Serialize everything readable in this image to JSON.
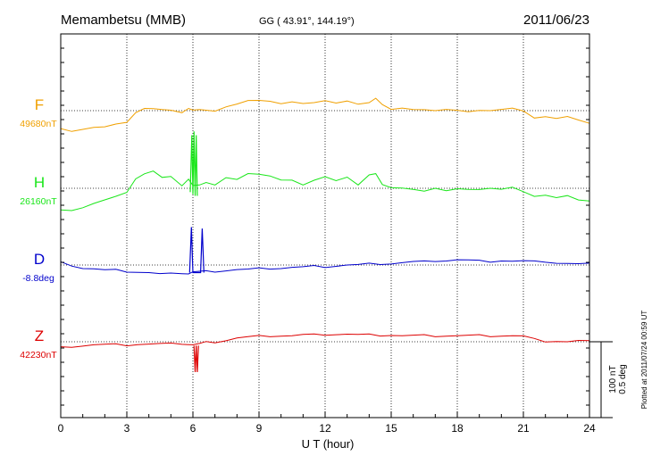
{
  "header": {
    "station": "Memambetsu (MMB)",
    "coords": "GG ( 43.91°, 144.19°)",
    "date": "2011/06/23"
  },
  "plotted_note": "Plotted at 2011/07/24 00:59 UT",
  "scale_bar": {
    "line1": "100 nT",
    "line2": "0.5 deg"
  },
  "colors": {
    "F": "#f0a000",
    "H": "#19e619",
    "D": "#0000cc",
    "Z": "#dd0000",
    "axis": "#000000"
  },
  "chart_data": {
    "type": "line",
    "title": "Memambetsu (MMB)",
    "xlabel": "U T (hour)",
    "ylabel": "",
    "xlim": [
      0,
      24
    ],
    "x_ticks": [
      0,
      3,
      6,
      9,
      12,
      15,
      18,
      21,
      24
    ],
    "grid": true,
    "scale": {
      "nT_per_bar": 100,
      "deg_per_bar": 0.5
    },
    "series": [
      {
        "name": "F",
        "baseline_label": "49680nT",
        "color_key": "F",
        "x": [
          0,
          0.5,
          1,
          1.5,
          2,
          2.5,
          3,
          3.4,
          3.8,
          4.2,
          4.6,
          5,
          5.5,
          5.8,
          6.0,
          6.3,
          6.6,
          7,
          7.5,
          8,
          8.5,
          9,
          9.5,
          10,
          10.5,
          11,
          11.5,
          12,
          12.5,
          13,
          13.5,
          14,
          14.3,
          14.6,
          15,
          15.5,
          16,
          16.5,
          17,
          17.5,
          18,
          18.5,
          19,
          19.5,
          20,
          20.5,
          21,
          21.5,
          22,
          22.5,
          23,
          23.5,
          24
        ],
        "y": [
          -25,
          -26,
          -24,
          -22,
          -22,
          -19,
          -14,
          -2,
          3,
          2,
          0,
          2,
          -2,
          3,
          0,
          0,
          2,
          0,
          5,
          8,
          12,
          15,
          13,
          9,
          11,
          8,
          12,
          14,
          10,
          12,
          7,
          12,
          17,
          8,
          1,
          2,
          3,
          2,
          0,
          1,
          -1,
          0,
          1,
          0,
          1,
          2,
          1,
          -9,
          -8,
          -11,
          -9,
          -11,
          -16
        ]
      },
      {
        "name": "H",
        "baseline_label": "26160nT",
        "color_key": "H",
        "x": [
          0,
          0.5,
          1,
          1.5,
          2,
          2.5,
          3,
          3.4,
          3.8,
          4.2,
          4.6,
          5,
          5.5,
          5.8,
          6.0,
          6.3,
          6.6,
          7,
          7.5,
          8,
          8.5,
          9,
          9.5,
          10,
          10.5,
          11,
          11.5,
          12,
          12.5,
          13,
          13.5,
          14,
          14.3,
          14.6,
          15,
          15.5,
          16,
          16.5,
          17,
          17.5,
          18,
          18.5,
          19,
          19.5,
          20,
          20.5,
          21,
          21.5,
          22,
          22.5,
          23,
          23.5,
          24
        ],
        "y": [
          -30,
          -28,
          -25,
          -20,
          -16,
          -12,
          -4,
          13,
          19,
          22,
          13,
          17,
          4,
          12,
          3,
          3,
          9,
          5,
          14,
          11,
          18,
          20,
          17,
          11,
          10,
          3,
          12,
          16,
          10,
          14,
          3,
          19,
          20,
          5,
          0,
          -1,
          0,
          -3,
          0,
          -4,
          -2,
          0,
          -1,
          0,
          -2,
          0,
          -3,
          -10,
          -9,
          -13,
          -11,
          -14,
          -16
        ]
      },
      {
        "name": "D",
        "baseline_label": "-8.8deg",
        "color_key": "D",
        "x": [
          0,
          0.5,
          1,
          1.5,
          2,
          2.5,
          3,
          3.5,
          4,
          4.5,
          5,
          5.5,
          5.8,
          6.0,
          6.3,
          6.6,
          7,
          7.5,
          8,
          8.5,
          9,
          9.5,
          10,
          10.5,
          11,
          11.5,
          12,
          12.5,
          13,
          13.5,
          14,
          14.5,
          15,
          15.5,
          16,
          16.5,
          17,
          17.5,
          18,
          18.5,
          19,
          19.5,
          20,
          20.5,
          21,
          21.5,
          22,
          22.5,
          23,
          23.5,
          24
        ],
        "y": [
          3,
          0,
          -4,
          -5,
          -7,
          -7,
          -8,
          -9,
          -10,
          -12,
          -12,
          -10,
          -11,
          -9,
          -9,
          -9,
          -8,
          -7,
          -6,
          -6,
          -5,
          -4,
          -4,
          -3,
          -3,
          -2,
          -2,
          -1,
          0,
          0,
          1,
          2,
          2,
          3,
          4,
          4,
          6,
          6,
          7,
          6,
          5,
          5,
          6,
          5,
          5,
          4,
          5,
          3,
          2,
          1,
          1
        ]
      },
      {
        "name": "Z",
        "baseline_label": "42230nT",
        "color_key": "Z",
        "x": [
          0,
          0.5,
          1,
          1.5,
          2,
          2.5,
          3,
          3.5,
          4,
          4.5,
          5,
          5.5,
          5.8,
          6.0,
          6.3,
          6.6,
          7,
          7.5,
          8,
          8.5,
          9,
          9.5,
          10,
          10.5,
          11,
          11.5,
          12,
          12.5,
          13,
          13.5,
          14,
          14.5,
          15,
          15.5,
          16,
          16.5,
          17,
          17.5,
          18,
          18.5,
          19,
          19.5,
          20,
          20.5,
          21,
          21.5,
          22,
          22.5,
          23,
          23.5,
          24
        ],
        "y": [
          -8,
          -6,
          -5,
          -4,
          -4,
          -4,
          -4,
          -3,
          -3,
          -3,
          -3,
          -2,
          -3,
          -4,
          -3,
          -1,
          0,
          2,
          5,
          6,
          7,
          8,
          8,
          8,
          9,
          9,
          10,
          10,
          10,
          9,
          9,
          9,
          9,
          8,
          8,
          8,
          8,
          8,
          8,
          8,
          8,
          8,
          8,
          8,
          7,
          3,
          1,
          1,
          0,
          1,
          0
        ]
      }
    ],
    "spikes": [
      {
        "series": "H",
        "x": [
          5.88,
          5.95,
          6.0,
          6.05,
          6.1,
          6.15,
          6.2
        ],
        "y": [
          -5,
          70,
          -8,
          75,
          -10,
          70,
          -10
        ]
      },
      {
        "series": "D",
        "x": [
          5.85,
          5.93,
          6.0,
          6.35,
          6.42,
          6.5
        ],
        "y": [
          -10,
          50,
          -10,
          -10,
          48,
          -10
        ]
      },
      {
        "series": "Z",
        "x": [
          6.05,
          6.1,
          6.15,
          6.2,
          6.25
        ],
        "y": [
          -5,
          -40,
          -5,
          -40,
          -5
        ]
      }
    ]
  }
}
